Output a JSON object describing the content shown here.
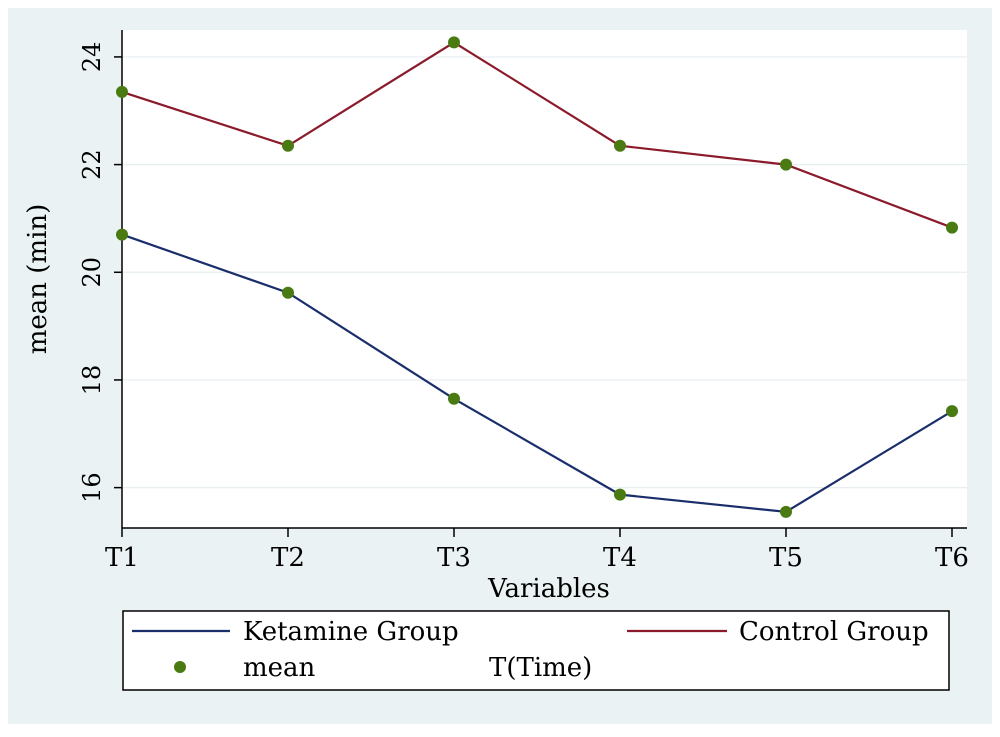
{
  "chart_data": {
    "type": "line",
    "xlabel": "Variables",
    "ylabel": "mean (min)",
    "categories": [
      "T1",
      "T2",
      "T3",
      "T4",
      "T5",
      "T6"
    ],
    "yticks": [
      16,
      18,
      20,
      22,
      24
    ],
    "ylim": [
      15.25,
      24.5
    ],
    "grid": true,
    "series": [
      {
        "name": "Ketamine Group",
        "color": "#1a2e6b",
        "values": [
          20.7,
          19.62,
          17.65,
          15.87,
          15.55,
          17.42
        ]
      },
      {
        "name": "Control Group",
        "color": "#8b1a2b",
        "values": [
          23.35,
          22.35,
          24.27,
          22.35,
          22.0,
          20.83
        ]
      }
    ],
    "marker": {
      "name": "mean",
      "color": "#4a7a12"
    },
    "legend": {
      "position": "bottom",
      "items": [
        "Ketamine Group",
        "Control Group",
        "mean",
        "T(Time)"
      ]
    }
  }
}
